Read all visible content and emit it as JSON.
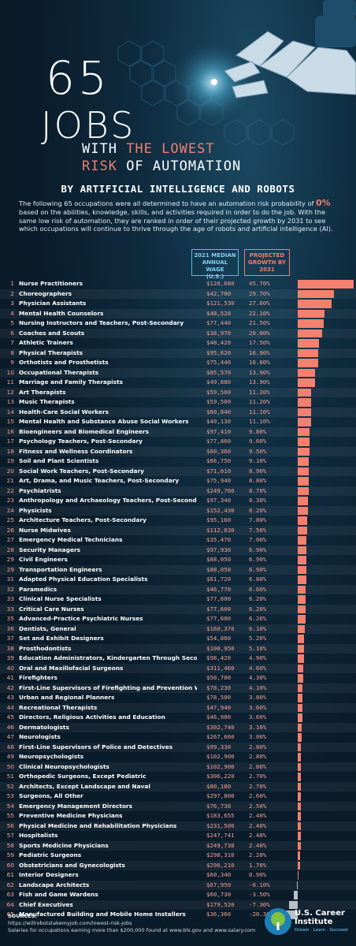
{
  "header": {
    "number": "65",
    "jobs": "JOBS",
    "line1_white": "WITH ",
    "line1_red": "THE LOWEST",
    "line2_red": "RISK ",
    "line2_white": "OF AUTOMATION",
    "subtitle": "BY ARTIFICIAL INTELLIGENCE AND ROBOTS",
    "intro_before": "The following 65 occupations were all determined to have an automation risk probability of ",
    "intro_pct": "0%",
    "intro_after": " based on the abilities, knowledge, skills, and activities required in order to do the job. With the same low risk of automation, they are ranked in order of their projected growth by 2031 to see which occupations will  continue to thrive through the age of robots and artificial intelligence (AI)."
  },
  "columns": {
    "wage_l1": "2021 MEDIAN",
    "wage_l2": "ANNUAL WAGE",
    "wage_l3": "(U.S.)",
    "growth_l1": "PROJECTED",
    "growth_l2": "GROWTH BY",
    "growth_l3": "2031"
  },
  "chart_data": {
    "type": "bar",
    "orientation": "horizontal",
    "title": "65 JOBS WITH THE LOWEST RISK OF AUTOMATION BY ARTIFICIAL INTELLIGENCE AND ROBOTS",
    "columns": [
      "2021 MEDIAN ANNUAL WAGE (U.S.)",
      "PROJECTED GROWTH BY 2031"
    ],
    "rows": [
      {
        "rank": "1",
        "occupation": "Nurse Practitioners",
        "wage": "$120,680",
        "growth_label": "45.70%",
        "growth": 45.7
      },
      {
        "rank": "2",
        "occupation": "Choreographers",
        "wage": "$42,700",
        "growth_label": "29.70%",
        "growth": 29.7
      },
      {
        "rank": "3",
        "occupation": "Physician Assistants",
        "wage": "$121,530",
        "growth_label": "27.60%",
        "growth": 27.6
      },
      {
        "rank": "4",
        "occupation": "Mental Health Counselors",
        "wage": "$48,520",
        "growth_label": "22.10%",
        "growth": 22.1
      },
      {
        "rank": "5",
        "occupation": "Nursing Instructors and Teachers, Post-Secondary",
        "wage": "$77,440",
        "growth_label": "21.50%",
        "growth": 21.5
      },
      {
        "rank": "6",
        "occupation": "Coaches and Scouts",
        "wage": "$38,970",
        "growth_label": "20.00%",
        "growth": 20.0
      },
      {
        "rank": "7",
        "occupation": "Athletic Trainers",
        "wage": "$48,420",
        "growth_label": "17.50%",
        "growth": 17.5
      },
      {
        "rank": "8",
        "occupation": "Physical Therapists",
        "wage": "$95,620",
        "growth_label": "16.90%",
        "growth": 16.9
      },
      {
        "rank": "9",
        "occupation": "Orthotists and Prosthetists",
        "wage": "$75,440",
        "growth_label": "16.80%",
        "growth": 16.8
      },
      {
        "rank": "10",
        "occupation": "Occupational Therapists",
        "wage": "$85,570",
        "growth_label": "13.90%",
        "growth": 13.9
      },
      {
        "rank": "11",
        "occupation": "Marriage and Family Therapists",
        "wage": "$49,880",
        "growth_label": "13.90%",
        "growth": 13.9
      },
      {
        "rank": "12",
        "occupation": "Art Therapists",
        "wage": "$59,500",
        "growth_label": "11.20%",
        "growth": 11.2
      },
      {
        "rank": "13",
        "occupation": "Music Therapists",
        "wage": "$59,500",
        "growth_label": "11.20%",
        "growth": 11.2
      },
      {
        "rank": "14",
        "occupation": "Health-Care Social Workers",
        "wage": "$60,840",
        "growth_label": "11.10%",
        "growth": 11.1
      },
      {
        "rank": "15",
        "occupation": "Mental Health and Substance Abuse Social Workers",
        "wage": "$49,130",
        "growth_label": "11.10%",
        "growth": 11.1
      },
      {
        "rank": "16",
        "occupation": "Bioengineers and Biomedical Engineers",
        "wage": "$97,410",
        "growth_label": "9.80%",
        "growth": 9.8
      },
      {
        "rank": "17",
        "occupation": "Psychology Teachers, Post-Secondary",
        "wage": "$77,860",
        "growth_label": "9.60%",
        "growth": 9.6
      },
      {
        "rank": "18",
        "occupation": "Fitness and Wellness Coordinators",
        "wage": "$60,360",
        "growth_label": "9.50%",
        "growth": 9.5
      },
      {
        "rank": "19",
        "occupation": "Soil and Plant Scientists",
        "wage": "$66,750",
        "growth_label": "9.10%",
        "growth": 9.1
      },
      {
        "rank": "20",
        "occupation": "Social Work Teachers, Post-Secondary",
        "wage": "$71,010",
        "growth_label": "8.90%",
        "growth": 8.9
      },
      {
        "rank": "21",
        "occupation": "Art, Drama, and Music Teachers, Post-Secondary",
        "wage": "$75,940",
        "growth_label": "8.80%",
        "growth": 8.8
      },
      {
        "rank": "22",
        "occupation": "Psychiatrists",
        "wage": "$249,760",
        "growth_label": "8.70%",
        "growth": 8.7
      },
      {
        "rank": "23",
        "occupation": "Anthropology and Archaeology Teachers, Post-Secondary",
        "wage": "$97,340",
        "growth_label": "8.30%",
        "growth": 8.3
      },
      {
        "rank": "24",
        "occupation": "Physicists",
        "wage": "$152,430",
        "growth_label": "8.20%",
        "growth": 8.2
      },
      {
        "rank": "25",
        "occupation": "Architecture Teachers, Post-Secondary",
        "wage": "$95,160",
        "growth_label": "7.80%",
        "growth": 7.8
      },
      {
        "rank": "26",
        "occupation": "Nurse Midwives",
        "wage": "$112,830",
        "growth_label": "7.50%",
        "growth": 7.5
      },
      {
        "rank": "27",
        "occupation": "Emergency Medical Technicians",
        "wage": "$35,470",
        "growth_label": "7.00%",
        "growth": 7.0
      },
      {
        "rank": "28",
        "occupation": "Security Managers",
        "wage": "$97,930",
        "growth_label": "6.90%",
        "growth": 6.9
      },
      {
        "rank": "29",
        "occupation": "Civil Engineers",
        "wage": "$88,050",
        "growth_label": "6.90%",
        "growth": 6.9
      },
      {
        "rank": "29",
        "occupation": "Transportation Engineers",
        "wage": "$88,050",
        "growth_label": "6.90%",
        "growth": 6.9
      },
      {
        "rank": "31",
        "occupation": "Adapted Physical Education Specialists",
        "wage": "$61,720",
        "growth_label": "6.80%",
        "growth": 6.8
      },
      {
        "rank": "32",
        "occupation": "Paramedics",
        "wage": "$46,770",
        "growth_label": "6.60%",
        "growth": 6.6
      },
      {
        "rank": "33",
        "occupation": "Clinical Nurse Specialists",
        "wage": "$77,600",
        "growth_label": "6.20%",
        "growth": 6.2
      },
      {
        "rank": "33",
        "occupation": "Critical Care Nurses",
        "wage": "$77,600",
        "growth_label": "6.20%",
        "growth": 6.2
      },
      {
        "rank": "35",
        "occupation": "Advanced-Practice Psychiatric Nurses",
        "wage": "$77,600",
        "growth_label": "6.20%",
        "growth": 6.2
      },
      {
        "rank": "36",
        "occupation": "Dentists, General",
        "wage": "$160,370",
        "growth_label": "6.10%",
        "growth": 6.1
      },
      {
        "rank": "37",
        "occupation": "Set and Exhibit Designers",
        "wage": "$54,860",
        "growth_label": "5.20%",
        "growth": 5.2
      },
      {
        "rank": "38",
        "occupation": "Prosthodontists",
        "wage": "$100,950",
        "growth_label": "5.10%",
        "growth": 5.1
      },
      {
        "rank": "39",
        "occupation": "Education Administrators, Kindergarten Through Secondary",
        "wage": "$98,420",
        "growth_label": "4.90%",
        "growth": 4.9
      },
      {
        "rank": "40",
        "occupation": "Oral and Maxillofacial Surgeons",
        "wage": "$311,460",
        "growth_label": "4.60%",
        "growth": 4.6
      },
      {
        "rank": "41",
        "occupation": "Firefighters",
        "wage": "$50,700",
        "growth_label": "4.30%",
        "growth": 4.3
      },
      {
        "rank": "42",
        "occupation": "First-Line Supervisors of Firefighting and Prevention Workers",
        "wage": "$78,230",
        "growth_label": "4.10%",
        "growth": 4.1
      },
      {
        "rank": "43",
        "occupation": "Urban and Regional Planners",
        "wage": "$78,500",
        "growth_label": "3.80%",
        "growth": 3.8
      },
      {
        "rank": "44",
        "occupation": "Recreational Therapists",
        "wage": "$47,940",
        "growth_label": "3.60%",
        "growth": 3.6
      },
      {
        "rank": "45",
        "occupation": "Directors, Religious Activities and Education",
        "wage": "$46,980",
        "growth_label": "3.60%",
        "growth": 3.6
      },
      {
        "rank": "46",
        "occupation": "Dermatologists",
        "wage": "$302,740",
        "growth_label": "3.10%",
        "growth": 3.1
      },
      {
        "rank": "47",
        "occupation": "Neurologists",
        "wage": "$267,660",
        "growth_label": "3.00%",
        "growth": 3.0
      },
      {
        "rank": "48",
        "occupation": "First-Line Supervisors of Police and Detectives",
        "wage": "$99,330",
        "growth_label": "2.80%",
        "growth": 2.8
      },
      {
        "rank": "49",
        "occupation": "Neuropsychologists",
        "wage": "$102,900",
        "growth_label": "2.80%",
        "growth": 2.8
      },
      {
        "rank": "50",
        "occupation": "Clinical Neuropsychologists",
        "wage": "$102,900",
        "growth_label": "2.80%",
        "growth": 2.8
      },
      {
        "rank": "51",
        "occupation": "Orthopedic Surgeons, Except Pediatric",
        "wage": "$306,220",
        "growth_label": "2.70%",
        "growth": 2.7
      },
      {
        "rank": "52",
        "occupation": "Architects, Except Landscape and Naval",
        "wage": "$80,180",
        "growth_label": "2.70%",
        "growth": 2.7
      },
      {
        "rank": "53",
        "occupation": "Surgeons, All Other",
        "wage": "$297,800",
        "growth_label": "2.60%",
        "growth": 2.6
      },
      {
        "rank": "54",
        "occupation": "Emergency Management Directors",
        "wage": "$76,730",
        "growth_label": "2.50%",
        "growth": 2.5
      },
      {
        "rank": "55",
        "occupation": "Preventive Medicine Physicians",
        "wage": "$183,655",
        "growth_label": "2.40%",
        "growth": 2.4
      },
      {
        "rank": "56",
        "occupation": "Physical Medicine and Rehabilitation Physicians",
        "wage": "$231,500",
        "growth_label": "2.40%",
        "growth": 2.4
      },
      {
        "rank": "57",
        "occupation": "Hospitalists",
        "wage": "$247,741",
        "growth_label": "2.40%",
        "growth": 2.4
      },
      {
        "rank": "58",
        "occupation": "Sports Medicine Physicians",
        "wage": "$249,738",
        "growth_label": "2.40%",
        "growth": 2.4
      },
      {
        "rank": "59",
        "occupation": "Pediatric Surgeons",
        "wage": "$298,310",
        "growth_label": "2.20%",
        "growth": 2.2
      },
      {
        "rank": "60",
        "occupation": "Obstetricians and Gynecologists",
        "wage": "$296,210",
        "growth_label": "1.70%",
        "growth": 1.7
      },
      {
        "rank": "61",
        "occupation": "Interior Designers",
        "wage": "$60,340",
        "growth_label": "0.90%",
        "growth": 0.9
      },
      {
        "rank": "62",
        "occupation": "Landscape Architects",
        "wage": "$67,950",
        "growth_label": "-0.10%",
        "growth": -0.1
      },
      {
        "rank": "63",
        "occupation": "Fish and Game Wardens",
        "wage": "$60,730",
        "growth_label": "-3.50%",
        "growth": -3.5
      },
      {
        "rank": "64",
        "occupation": "Chief Executives",
        "wage": "$179,520",
        "growth_label": "-7.30%",
        "growth": -7.3
      },
      {
        "rank": "65",
        "occupation": "Manufactured Building and Mobile Home Installers",
        "wage": "$36,360",
        "growth_label": "-20.30%",
        "growth": -20.3
      }
    ],
    "colors": {
      "positive": "#f4806f",
      "negative": "#b9c0c6"
    }
  },
  "footer": {
    "sources_label": "SOURCES:",
    "source1": "https://willrobotstakemyjob.com/lowest-risk-jobs",
    "source2": "Salaries for occupations earning more than $200,000 found at www.bls.gov and www.salary.com",
    "logo_line1": "U.S. Career",
    "logo_line2": "Institute",
    "logo_tag": "Dream · Learn · Succeed"
  }
}
